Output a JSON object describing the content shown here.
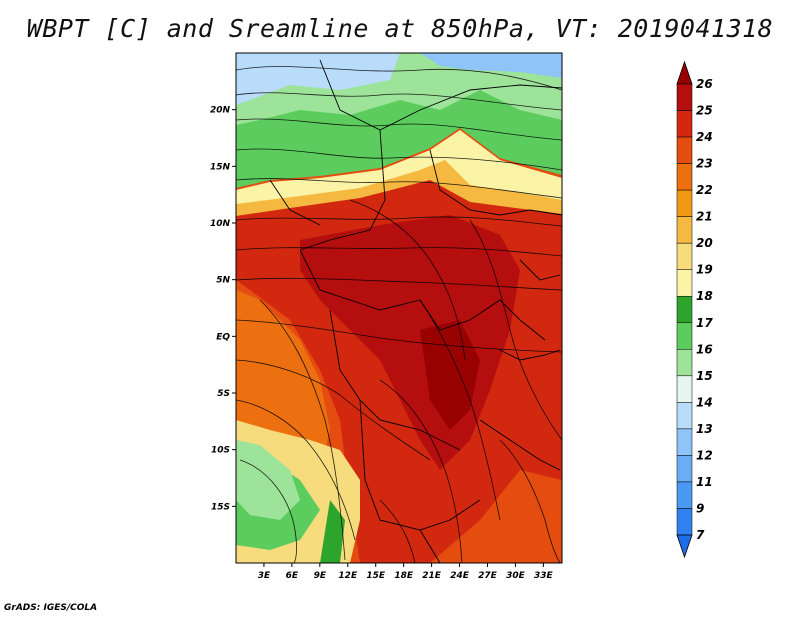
{
  "title": "WBPT [C] and Sreamline at 850hPa, VT: 2019041318",
  "footer": "GrADS: IGES/COLA",
  "map": {
    "lat_range": [
      -20,
      25
    ],
    "lon_range": [
      0,
      35
    ],
    "lat_ticks": [
      {
        "value": 20,
        "label": "20N"
      },
      {
        "value": 15,
        "label": "15N"
      },
      {
        "value": 10,
        "label": "10N"
      },
      {
        "value": 5,
        "label": "5N"
      },
      {
        "value": 0,
        "label": "EQ"
      },
      {
        "value": -5,
        "label": "5S"
      },
      {
        "value": -10,
        "label": "10S"
      },
      {
        "value": -15,
        "label": "15S"
      }
    ],
    "lon_ticks": [
      {
        "value": 3,
        "label": "3E"
      },
      {
        "value": 6,
        "label": "6E"
      },
      {
        "value": 9,
        "label": "9E"
      },
      {
        "value": 12,
        "label": "12E"
      },
      {
        "value": 15,
        "label": "15E"
      },
      {
        "value": 18,
        "label": "18E"
      },
      {
        "value": 21,
        "label": "21E"
      },
      {
        "value": 24,
        "label": "24E"
      },
      {
        "value": 27,
        "label": "27E"
      },
      {
        "value": 30,
        "label": "30E"
      },
      {
        "value": 33,
        "label": "33E"
      }
    ]
  },
  "colorbar": {
    "levels": [
      "7",
      "9",
      "11",
      "12",
      "13",
      "14",
      "15",
      "16",
      "17",
      "18",
      "19",
      "20",
      "21",
      "22",
      "23",
      "24",
      "25",
      "26"
    ],
    "colors": [
      "#1e6ee8",
      "#2f82f0",
      "#4a9af4",
      "#6aaff6",
      "#8ec4f8",
      "#b8dcfa",
      "#e6f5f0",
      "#9ee39a",
      "#5ccc5e",
      "#2da52d",
      "#fbf3a6",
      "#f7dc7e",
      "#f5b840",
      "#f09a14",
      "#ec7010",
      "#e54c10",
      "#d22810",
      "#b40e0e",
      "#990000"
    ]
  },
  "field_regions": [
    {
      "name": "north-blue",
      "color": "#b8dcfa"
    },
    {
      "name": "north-green",
      "color": "#5ccc5e"
    },
    {
      "name": "sahel-cream",
      "color": "#fbf3a6"
    },
    {
      "name": "tropics-red",
      "color": "#d22810"
    },
    {
      "name": "congo-darkred",
      "color": "#b40e0e"
    },
    {
      "name": "southwest-green",
      "color": "#5ccc5e"
    }
  ]
}
